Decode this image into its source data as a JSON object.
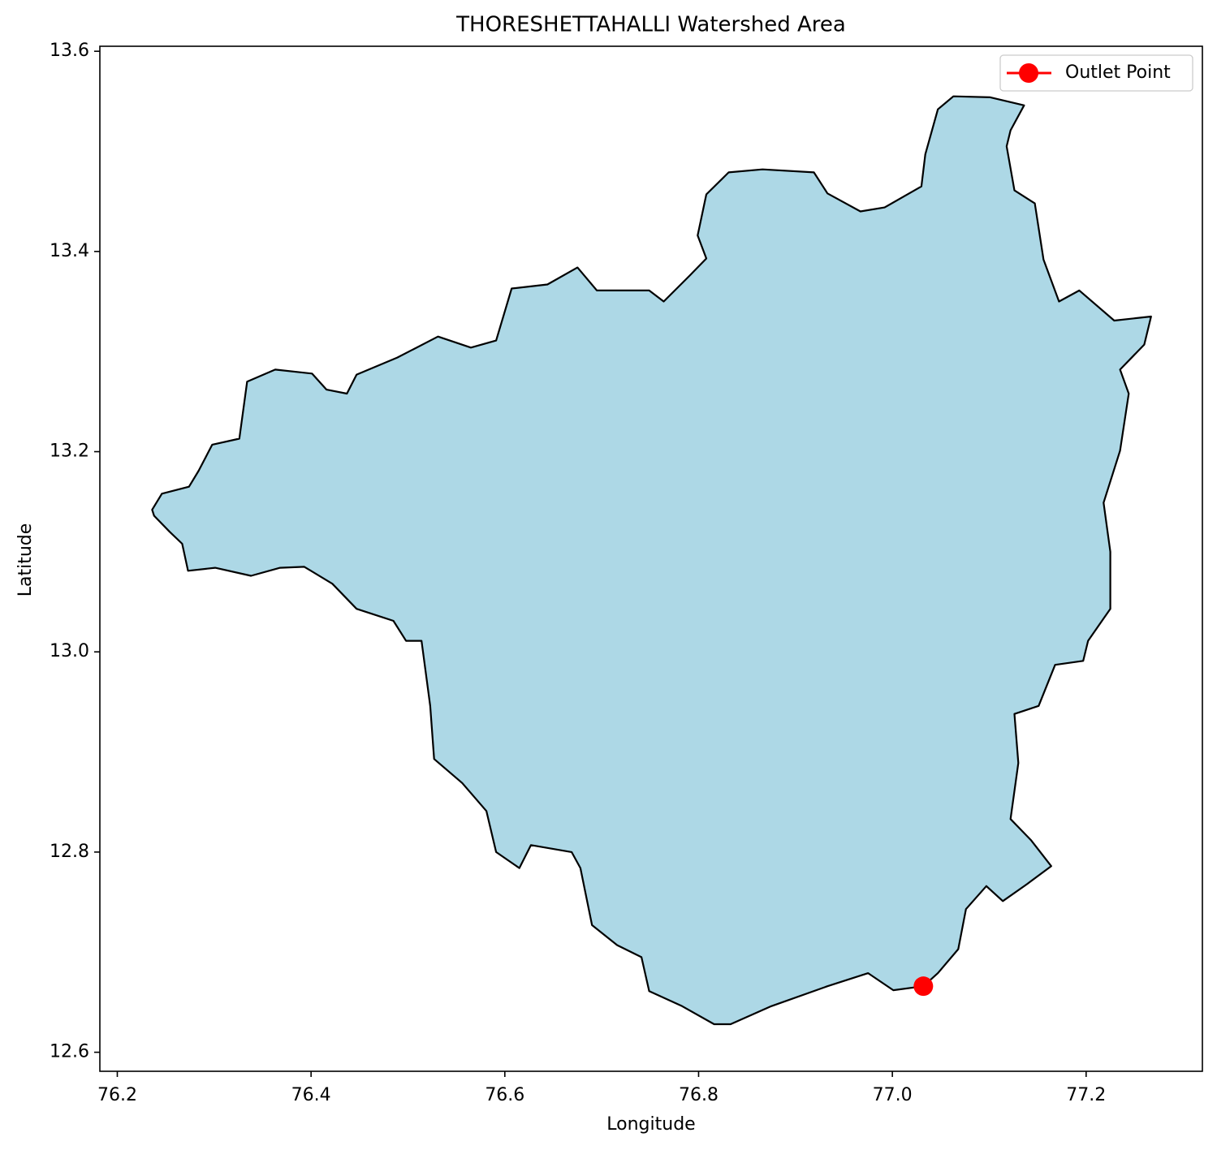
{
  "chart_data": {
    "type": "map",
    "title": "THORESHETTAHALLI Watershed Area",
    "xlabel": "Longitude",
    "ylabel": "Latitude",
    "xlim": [
      76.182,
      77.32
    ],
    "ylim": [
      12.581,
      13.605
    ],
    "xticks": [
      76.2,
      76.4,
      76.6,
      76.8,
      {
        "value": 77,
        "label": "77.0"
      },
      77.2
    ],
    "yticks": [
      12.6,
      12.8,
      {
        "value": 13,
        "label": "13.0"
      },
      13.2,
      13.4,
      13.6
    ],
    "boundary": {
      "color": "#add8e6",
      "edge_color": "#000000",
      "x": [
        76.236,
        76.246,
        76.274,
        76.284,
        76.298,
        76.326,
        76.334,
        76.363,
        76.401,
        76.416,
        76.437,
        76.447,
        76.489,
        76.531,
        76.565,
        76.591,
        76.607,
        76.644,
        76.675,
        76.695,
        76.749,
        76.764,
        76.791,
        76.808,
        76.799,
        76.808,
        76.831,
        76.866,
        76.919,
        76.933,
        76.967,
        76.992,
        77.03,
        77.034,
        77.047,
        77.063,
        77.101,
        77.136,
        77.122,
        77.118,
        77.126,
        77.147,
        77.156,
        77.172,
        77.193,
        77.229,
        77.267,
        77.26,
        77.235,
        77.244,
        77.235,
        77.218,
        77.225,
        77.225,
        77.202,
        77.197,
        77.168,
        77.151,
        77.126,
        77.13,
        77.122,
        77.143,
        77.164,
        77.139,
        77.114,
        77.097,
        77.076,
        77.068,
        77.047,
        77.032,
        77.001,
        76.975,
        76.933,
        76.875,
        76.833,
        76.816,
        76.783,
        76.749,
        76.741,
        76.716,
        76.69,
        76.678,
        76.669,
        76.627,
        76.615,
        76.591,
        76.581,
        76.556,
        76.527,
        76.523,
        76.514,
        76.498,
        76.485,
        76.447,
        76.422,
        76.393,
        76.368,
        76.338,
        76.301,
        76.273,
        76.267,
        76.254,
        76.238
      ],
      "y": [
        13.142,
        13.158,
        13.165,
        13.181,
        13.207,
        13.213,
        13.27,
        13.282,
        13.278,
        13.262,
        13.258,
        13.277,
        13.294,
        13.315,
        13.304,
        13.311,
        13.363,
        13.367,
        13.384,
        13.361,
        13.361,
        13.35,
        13.376,
        13.393,
        13.416,
        13.457,
        13.479,
        13.482,
        13.479,
        13.458,
        13.44,
        13.444,
        13.465,
        13.497,
        13.542,
        13.555,
        13.554,
        13.546,
        13.521,
        13.505,
        13.461,
        13.448,
        13.392,
        13.35,
        13.361,
        13.331,
        13.335,
        13.307,
        13.282,
        13.258,
        13.201,
        13.149,
        13.1,
        13.043,
        13.011,
        12.991,
        12.987,
        12.946,
        12.938,
        12.889,
        12.833,
        12.812,
        12.786,
        12.768,
        12.751,
        12.766,
        12.743,
        12.703,
        12.679,
        12.666,
        12.662,
        12.679,
        12.666,
        12.646,
        12.628,
        12.628,
        12.646,
        12.661,
        12.695,
        12.707,
        12.727,
        12.784,
        12.8,
        12.807,
        12.784,
        12.8,
        12.841,
        12.869,
        12.893,
        12.946,
        13.011,
        13.011,
        13.031,
        13.043,
        13.068,
        13.085,
        13.084,
        13.076,
        13.084,
        13.081,
        13.108,
        13.12,
        13.136
      ]
    },
    "points": [
      {
        "name": "Outlet Point",
        "color": "#ff0000",
        "x": 77.032,
        "y": 12.666
      }
    ],
    "legend": "upper right"
  }
}
